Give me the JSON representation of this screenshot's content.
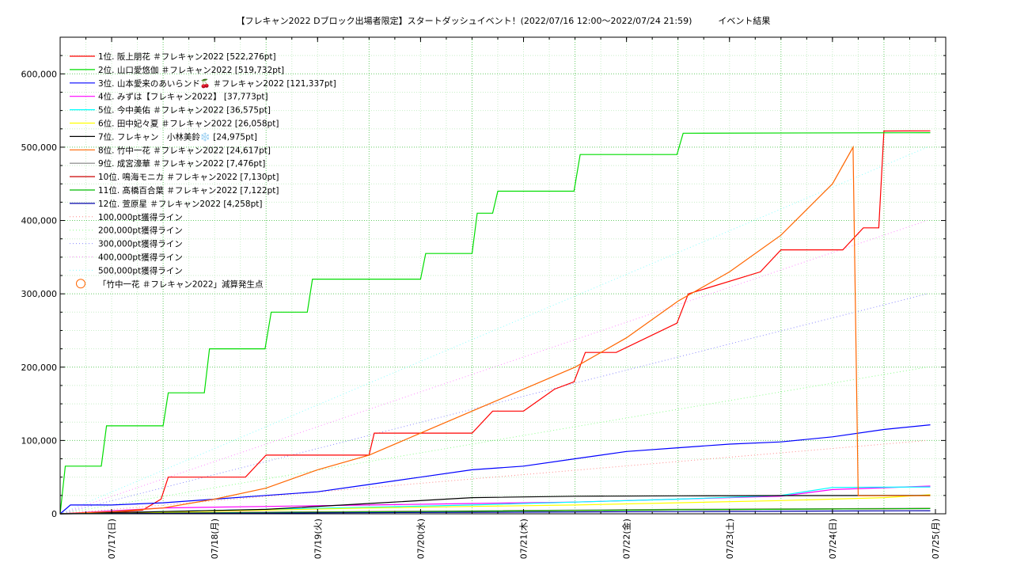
{
  "chart_data": {
    "type": "line",
    "title": "【フレキャン2022 Dブロック出場者限定】スタートダッシュイベント！(2022/07/16 12:00〜2022/07/24 21:59)　　　イベント結果",
    "x_tick_labels": [
      "07/17(日)",
      "07/18(月)",
      "07/19(火)",
      "07/20(水)",
      "07/21(木)",
      "07/22(金)",
      "07/23(土)",
      "07/24(日)",
      "07/25(月)"
    ],
    "x_range_days": [
      0,
      8.6
    ],
    "y_tick_labels": [
      "0",
      "100,000",
      "200,000",
      "300,000",
      "400,000",
      "500,000",
      "600,000"
    ],
    "ylim": [
      0,
      650000
    ],
    "grid": true,
    "legend_position": "top-left",
    "series": [
      {
        "name": "1位. 阪上朋花 ＃フレキャン2022 [522,276pt]",
        "color": "#ff0000",
        "x": [
          0,
          0.2,
          0.5,
          0.8,
          0.98,
          1.05,
          1.5,
          1.8,
          2.0,
          2.05,
          2.2,
          2.5,
          3.0,
          3.05,
          3.5,
          4.0,
          4.2,
          4.5,
          4.8,
          4.99,
          5.1,
          5.4,
          5.99,
          6.1,
          6.8,
          7.0,
          7.3,
          7.6,
          7.8,
          7.95,
          8.0,
          8.45
        ],
        "y": [
          0,
          1000,
          2000,
          5000,
          20000,
          50000,
          50000,
          50000,
          80000,
          80000,
          80000,
          80000,
          80000,
          110000,
          110000,
          110000,
          140000,
          140000,
          170000,
          180000,
          220000,
          220000,
          260000,
          300000,
          330000,
          360000,
          360000,
          360000,
          390000,
          390000,
          522000,
          522276
        ]
      },
      {
        "name": "2位. 山口愛悠伽 ＃フレキャン2022 [519,732pt]",
        "color": "#00dd00",
        "x": [
          0,
          0.05,
          0.4,
          0.45,
          1.0,
          1.05,
          1.4,
          1.45,
          1.99,
          2.05,
          2.4,
          2.45,
          3.5,
          3.55,
          4.0,
          4.05,
          4.2,
          4.25,
          4.99,
          5.05,
          5.99,
          6.05,
          8.45
        ],
        "y": [
          0,
          65000,
          65000,
          120000,
          120000,
          165000,
          165000,
          225000,
          225000,
          275000,
          275000,
          320000,
          320000,
          355000,
          355000,
          410000,
          410000,
          440000,
          440000,
          490000,
          490000,
          519000,
          519732
        ]
      },
      {
        "name": "3位. 山本愛来のあいらンド🍒 ＃フレキャン2022 [121,337pt]",
        "color": "#0000ff",
        "x": [
          0,
          0.1,
          0.5,
          1.0,
          1.5,
          2.0,
          2.5,
          3.0,
          3.5,
          4.0,
          4.5,
          5.0,
          5.5,
          6.0,
          6.5,
          7.0,
          7.5,
          8.0,
          8.45
        ],
        "y": [
          0,
          12000,
          12000,
          15000,
          20000,
          25000,
          30000,
          40000,
          50000,
          60000,
          65000,
          75000,
          85000,
          90000,
          95000,
          98000,
          105000,
          115000,
          121337
        ]
      },
      {
        "name": "4位. みずは【フレキャン2022】 [37,773pt]",
        "color": "#ff00ff",
        "x": [
          0,
          1,
          2,
          3,
          4,
          5,
          6,
          7,
          7.5,
          8.45
        ],
        "y": [
          0,
          8000,
          10000,
          12000,
          14000,
          16000,
          20000,
          24000,
          33000,
          37773
        ]
      },
      {
        "name": "5位. 今中美佑 ＃フレキャン2022 [36,575pt]",
        "color": "#00ffff",
        "x": [
          0,
          1,
          2,
          3,
          4,
          5,
          6,
          7,
          7.5,
          8.45
        ],
        "y": [
          0,
          3000,
          6000,
          9000,
          12000,
          16000,
          20000,
          25000,
          36000,
          36575
        ]
      },
      {
        "name": "6位. 田中妃々夏 ＃フレキャン2022 [26,058pt]",
        "color": "#ffff00",
        "x": [
          0,
          1,
          2,
          3,
          4,
          5,
          6,
          7,
          8,
          8.45
        ],
        "y": [
          0,
          2000,
          5000,
          8000,
          10000,
          12000,
          15000,
          18000,
          22000,
          26058
        ]
      },
      {
        "name": "7位. フレキャン　小林美鈴❄️ [24,975pt]",
        "color": "#000000",
        "x": [
          0,
          1,
          2,
          3,
          4,
          5,
          6,
          7,
          8,
          8.45
        ],
        "y": [
          0,
          3000,
          6000,
          14000,
          22000,
          24000,
          24500,
          24800,
          24975,
          24975
        ]
      },
      {
        "name": "8位. 竹中一花 ＃フレキャン2022 [24,617pt]",
        "color": "#ff6600",
        "x": [
          0,
          0.5,
          1,
          1.5,
          2.0,
          2.5,
          3.0,
          3.5,
          4.0,
          4.5,
          5.0,
          5.5,
          6.0,
          6.5,
          7.0,
          7.5,
          7.7,
          7.75,
          8.45
        ],
        "y": [
          0,
          3000,
          8000,
          20000,
          35000,
          60000,
          80000,
          110000,
          140000,
          170000,
          200000,
          240000,
          290000,
          330000,
          380000,
          450000,
          500000,
          24617,
          24617
        ]
      },
      {
        "name": "9位. 成宮濠華 ＃フレキャン2022 [7,476pt]",
        "color": "#808080",
        "x": [
          0,
          2,
          4,
          6,
          8.45
        ],
        "y": [
          0,
          2000,
          4000,
          6000,
          7476
        ]
      },
      {
        "name": "10位. 鳴海モニカ ＃フレキャン2022 [7,130pt]",
        "color": "#cc0000",
        "x": [
          0,
          2,
          4,
          6,
          8.45
        ],
        "y": [
          0,
          2000,
          3500,
          5500,
          7130
        ]
      },
      {
        "name": "11位. 髙橋百合葉 ＃フレキャン2022 [7,122pt]",
        "color": "#00bb00",
        "x": [
          0,
          2,
          4,
          6,
          8.45
        ],
        "y": [
          0,
          1800,
          3500,
          5500,
          7122
        ]
      },
      {
        "name": "12位. 萱原星 ＃フレキャン2022 [4,258pt]",
        "color": "#0000aa",
        "x": [
          0,
          2,
          4,
          6,
          8.45
        ],
        "y": [
          0,
          1000,
          2000,
          3000,
          4258
        ]
      }
    ],
    "reference_lines": [
      {
        "name": "100,000pt獲得ライン",
        "color": "#ff8888",
        "target": 100000
      },
      {
        "name": "200,000pt獲得ライン",
        "color": "#88ff88",
        "target": 200000
      },
      {
        "name": "300,000pt獲得ライン",
        "color": "#8888ff",
        "target": 300000
      },
      {
        "name": "400,000pt獲得ライン",
        "color": "#ff88ff",
        "target": 400000
      },
      {
        "name": "500,000pt獲得ライン",
        "color": "#88ffff",
        "target": 500000
      }
    ],
    "markers": [
      {
        "name": "「竹中一花 ＃フレキャン2022」減算発生点",
        "color": "#ff6600"
      }
    ]
  }
}
